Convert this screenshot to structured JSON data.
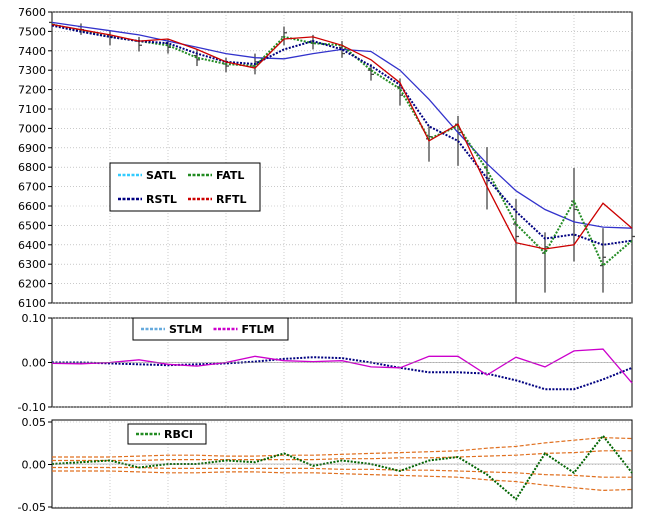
{
  "chart_data": [
    {
      "type": "line",
      "ylim": [
        6200,
        7600
      ],
      "yticks": [
        "7600",
        "7500",
        "7400",
        "7300",
        "7200",
        "7100",
        "7000",
        "6900",
        "6800",
        "6700",
        "6600",
        "6500",
        "6400",
        "6300",
        "6200",
        "6100"
      ],
      "grid": true,
      "legend": {
        "placement": "center-left",
        "entries": [
          {
            "name": "SATL",
            "color": "#33ccff"
          },
          {
            "name": "FATL",
            "color": "#228b22"
          },
          {
            "name": "RSTL",
            "color": "#000080"
          },
          {
            "name": "RFTL",
            "color": "#cc0000"
          }
        ]
      },
      "x": [
        0,
        5,
        10,
        15,
        20,
        25,
        30,
        35,
        40,
        45,
        50,
        55,
        60,
        65,
        70,
        75,
        80,
        85,
        90,
        95,
        100
      ],
      "series": [
        {
          "name": "SATL",
          "color": "#3333cc",
          "values": [
            7550,
            7530,
            7510,
            7490,
            7460,
            7430,
            7400,
            7380,
            7375,
            7400,
            7420,
            7410,
            7320,
            7180,
            7020,
            6870,
            6740,
            6650,
            6590,
            6565,
            6560
          ]
        },
        {
          "name": "FATL",
          "color": "#228b22",
          "values": [
            7540,
            7510,
            7480,
            7460,
            7440,
            7380,
            7350,
            7340,
            7480,
            7450,
            7440,
            7320,
            7230,
            6990,
            7050,
            6840,
            6580,
            6440,
            6690,
            6380,
            6500
          ]
        },
        {
          "name": "RSTL",
          "color": "#000080",
          "values": [
            7535,
            7505,
            7480,
            7460,
            7450,
            7400,
            7360,
            7350,
            7420,
            7460,
            7420,
            7340,
            7250,
            7050,
            6980,
            6800,
            6640,
            6510,
            6530,
            6480,
            6500
          ]
        },
        {
          "name": "RFTL",
          "color": "#cc0000",
          "values": [
            7540,
            7515,
            7490,
            7460,
            7470,
            7420,
            7360,
            7330,
            7470,
            7480,
            7440,
            7370,
            7260,
            6980,
            7060,
            6760,
            6490,
            6460,
            6480,
            6680,
            6560
          ]
        }
      ],
      "candles": [
        {
          "x": 0,
          "o": 7550,
          "c": 7540,
          "h": 7560,
          "l": 7500
        },
        {
          "x": 5,
          "o": 7530,
          "c": 7515,
          "h": 7545,
          "l": 7490
        },
        {
          "x": 10,
          "o": 7490,
          "c": 7480,
          "h": 7510,
          "l": 7440
        },
        {
          "x": 15,
          "o": 7460,
          "c": 7440,
          "h": 7480,
          "l": 7410
        },
        {
          "x": 20,
          "o": 7450,
          "c": 7430,
          "h": 7470,
          "l": 7400
        },
        {
          "x": 25,
          "o": 7390,
          "c": 7370,
          "h": 7420,
          "l": 7340
        },
        {
          "x": 30,
          "o": 7350,
          "c": 7340,
          "h": 7380,
          "l": 7310
        },
        {
          "x": 35,
          "o": 7340,
          "c": 7360,
          "h": 7400,
          "l": 7300
        },
        {
          "x": 40,
          "o": 7480,
          "c": 7500,
          "h": 7530,
          "l": 7440
        },
        {
          "x": 45,
          "o": 7460,
          "c": 7450,
          "h": 7490,
          "l": 7420
        },
        {
          "x": 50,
          "o": 7430,
          "c": 7400,
          "h": 7460,
          "l": 7380
        },
        {
          "x": 55,
          "o": 7320,
          "c": 7300,
          "h": 7350,
          "l": 7270
        },
        {
          "x": 60,
          "o": 7240,
          "c": 7200,
          "h": 7280,
          "l": 7150
        },
        {
          "x": 65,
          "o": 6990,
          "c": 7000,
          "h": 7050,
          "l": 6880
        },
        {
          "x": 70,
          "o": 7060,
          "c": 7020,
          "h": 7100,
          "l": 6860
        },
        {
          "x": 75,
          "o": 6850,
          "c": 6800,
          "h": 6950,
          "l": 6650
        },
        {
          "x": 80,
          "o": 6580,
          "c": 6520,
          "h": 6700,
          "l": 6200
        },
        {
          "x": 85,
          "o": 6440,
          "c": 6470,
          "h": 6540,
          "l": 6250
        },
        {
          "x": 90,
          "o": 6690,
          "c": 6650,
          "h": 6850,
          "l": 6400
        },
        {
          "x": 95,
          "o": 6380,
          "c": 6420,
          "h": 6560,
          "l": 6250
        },
        {
          "x": 100,
          "o": 6500,
          "c": 6520,
          "h": 6580,
          "l": 6400
        }
      ]
    },
    {
      "type": "line",
      "ylim": [
        -0.1,
        0.1
      ],
      "yticks": [
        "0.10",
        "0.00",
        "-0.10"
      ],
      "grid": true,
      "legend": {
        "placement": "top-center",
        "entries": [
          {
            "name": "STLM",
            "color": "#66aadd"
          },
          {
            "name": "FTLM",
            "color": "#cc00cc"
          }
        ]
      },
      "x": [
        0,
        5,
        10,
        15,
        20,
        25,
        30,
        35,
        40,
        45,
        50,
        55,
        60,
        65,
        70,
        75,
        80,
        85,
        90,
        95,
        100
      ],
      "series": [
        {
          "name": "STLM",
          "color": "#000080",
          "values": [
            0,
            0,
            -0.002,
            -0.004,
            -0.006,
            -0.004,
            -0.002,
            0.002,
            0.008,
            0.012,
            0.01,
            0,
            -0.012,
            -0.022,
            -0.022,
            -0.025,
            -0.04,
            -0.06,
            -0.06,
            -0.038,
            -0.012
          ]
        },
        {
          "name": "FTLM",
          "color": "#cc00cc",
          "values": [
            -0.002,
            -0.003,
            0,
            0.006,
            -0.004,
            -0.008,
            0,
            0.014,
            0.004,
            0.002,
            0.004,
            -0.01,
            -0.012,
            0.014,
            0.014,
            -0.028,
            0.012,
            -0.01,
            0.026,
            0.03,
            -0.046
          ]
        }
      ]
    },
    {
      "type": "line",
      "ylim": [
        -0.05,
        0.05
      ],
      "yticks": [
        "0.05",
        "0.00",
        "-0.05"
      ],
      "grid": true,
      "legend": {
        "placement": "top-left",
        "entries": [
          {
            "name": "RBCI",
            "color": "#228b22"
          }
        ]
      },
      "x": [
        0,
        5,
        10,
        15,
        20,
        25,
        30,
        35,
        40,
        45,
        50,
        55,
        60,
        65,
        70,
        75,
        80,
        85,
        90,
        95,
        100
      ],
      "series": [
        {
          "name": "RBCI",
          "color": "#006400",
          "values": [
            0,
            0.002,
            0.004,
            -0.004,
            0,
            0,
            0.004,
            0.002,
            0.012,
            -0.002,
            0.004,
            0,
            -0.008,
            0.004,
            0.008,
            -0.012,
            -0.04,
            0.012,
            -0.01,
            0.032,
            -0.01
          ]
        }
      ],
      "bands": [
        {
          "color": "#e07020",
          "values": [
            0.008,
            0.008,
            0.008,
            0.009,
            0.01,
            0.01,
            0.009,
            0.009,
            0.01,
            0.01,
            0.011,
            0.012,
            0.013,
            0.014,
            0.015,
            0.018,
            0.02,
            0.024,
            0.027,
            0.03,
            0.029
          ]
        },
        {
          "color": "#e07020",
          "values": [
            0.004,
            0.004,
            0.004,
            0.004,
            0.005,
            0.005,
            0.005,
            0.005,
            0.005,
            0.005,
            0.006,
            0.006,
            0.007,
            0.007,
            0.008,
            0.009,
            0.01,
            0.012,
            0.013,
            0.015,
            0.015
          ]
        },
        {
          "color": "#e07020",
          "values": [
            -0.004,
            -0.004,
            -0.004,
            -0.004,
            -0.005,
            -0.005,
            -0.005,
            -0.005,
            -0.005,
            -0.005,
            -0.006,
            -0.006,
            -0.007,
            -0.007,
            -0.008,
            -0.009,
            -0.01,
            -0.012,
            -0.013,
            -0.015,
            -0.015
          ]
        },
        {
          "color": "#e07020",
          "values": [
            -0.008,
            -0.008,
            -0.008,
            -0.009,
            -0.01,
            -0.01,
            -0.009,
            -0.009,
            -0.01,
            -0.01,
            -0.011,
            -0.012,
            -0.013,
            -0.014,
            -0.015,
            -0.018,
            -0.02,
            -0.024,
            -0.027,
            -0.03,
            -0.029
          ]
        }
      ]
    }
  ]
}
